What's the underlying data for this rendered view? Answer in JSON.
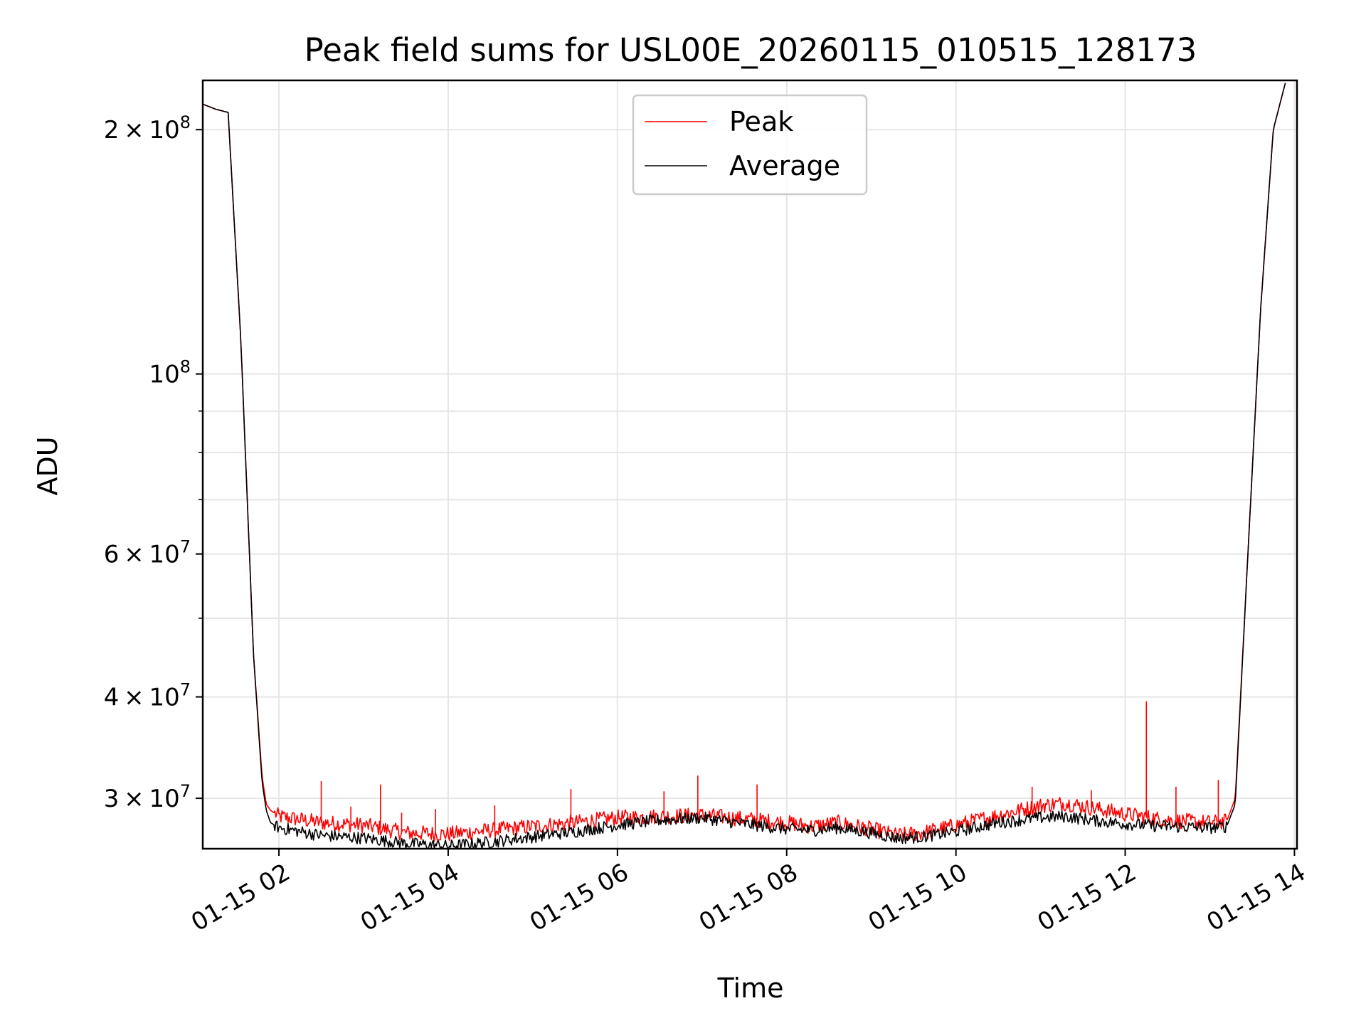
{
  "chart_data": {
    "type": "line",
    "title": "Peak field sums for USL00E_20260115_010515_128173",
    "xlabel": "Time",
    "ylabel": "ADU",
    "yscale": "log",
    "x_units": "hours since 2026-01-15 00:00",
    "xlim": [
      1.1,
      14.03
    ],
    "ylim": [
      26000000,
      230000000
    ],
    "grid": true,
    "legend_position": "upper-center",
    "x_ticks": [
      {
        "value": 2,
        "label": "01-15 02"
      },
      {
        "value": 4,
        "label": "01-15 04"
      },
      {
        "value": 6,
        "label": "01-15 06"
      },
      {
        "value": 8,
        "label": "01-15 08"
      },
      {
        "value": 10,
        "label": "01-15 10"
      },
      {
        "value": 12,
        "label": "01-15 12"
      },
      {
        "value": 14,
        "label": "01-15 14"
      }
    ],
    "y_ticks": [
      {
        "value": 200000000,
        "mant": "2",
        "exp": "8"
      },
      {
        "value": 100000000,
        "mant": "",
        "exp": "8"
      },
      {
        "value": 60000000,
        "mant": "6",
        "exp": "7"
      },
      {
        "value": 40000000,
        "mant": "4",
        "exp": "7"
      },
      {
        "value": 30000000,
        "mant": "3",
        "exp": "7"
      }
    ],
    "y_minor_ticks": [
      90000000,
      80000000,
      70000000,
      50000000
    ],
    "series": [
      {
        "name": "Peak",
        "color": "#ff0000",
        "x": [
          1.1,
          1.25,
          1.4,
          1.55,
          1.7,
          1.8,
          1.85,
          1.9,
          2.0,
          2.5,
          3.0,
          3.5,
          4.0,
          4.5,
          5.0,
          5.5,
          6.0,
          6.5,
          7.0,
          7.5,
          8.0,
          8.3,
          8.6,
          9.0,
          9.3,
          9.6,
          10.0,
          10.5,
          11.0,
          11.3,
          11.6,
          12.0,
          12.5,
          13.0,
          13.2,
          13.3,
          13.45,
          13.6,
          13.75,
          13.9
        ],
        "y": [
          215000000,
          212000000,
          210000000,
          110000000,
          45000000,
          32000000,
          29500000,
          29000000,
          28500000,
          28000000,
          27800000,
          27200000,
          27100000,
          27400000,
          27700000,
          28000000,
          28400000,
          28500000,
          28600000,
          28300000,
          28000000,
          27700000,
          28000000,
          27500000,
          27000000,
          27200000,
          27800000,
          28600000,
          29400000,
          29600000,
          29200000,
          28700000,
          28200000,
          28000000,
          28100000,
          30000000,
          60000000,
          120000000,
          200000000,
          230000000
        ],
        "spikes": [
          {
            "x": 2.5,
            "y": 31500000
          },
          {
            "x": 2.85,
            "y": 29300000
          },
          {
            "x": 3.2,
            "y": 31200000
          },
          {
            "x": 3.45,
            "y": 28800000
          },
          {
            "x": 3.85,
            "y": 29100000
          },
          {
            "x": 4.55,
            "y": 29400000
          },
          {
            "x": 5.45,
            "y": 30800000
          },
          {
            "x": 6.55,
            "y": 30600000
          },
          {
            "x": 6.95,
            "y": 32000000
          },
          {
            "x": 7.65,
            "y": 31200000
          },
          {
            "x": 10.9,
            "y": 31000000
          },
          {
            "x": 11.6,
            "y": 30700000
          },
          {
            "x": 12.25,
            "y": 39500000
          },
          {
            "x": 12.6,
            "y": 31000000
          },
          {
            "x": 13.1,
            "y": 31600000
          }
        ]
      },
      {
        "name": "Average",
        "color": "#000000",
        "x": [
          1.1,
          1.25,
          1.4,
          1.55,
          1.7,
          1.8,
          1.85,
          1.9,
          2.0,
          2.5,
          3.0,
          3.5,
          4.0,
          4.5,
          5.0,
          5.5,
          6.0,
          6.5,
          7.0,
          7.5,
          8.0,
          8.3,
          8.6,
          9.0,
          9.3,
          9.6,
          10.0,
          10.5,
          11.0,
          11.3,
          11.6,
          12.0,
          12.5,
          13.0,
          13.2,
          13.3,
          13.45,
          13.6,
          13.75,
          13.9
        ],
        "y": [
          215000000,
          212000000,
          210000000,
          110000000,
          45000000,
          31500000,
          29000000,
          28000000,
          27600000,
          27000000,
          26800000,
          26400000,
          26200000,
          26500000,
          26900000,
          27300000,
          27800000,
          28200000,
          28400000,
          27900000,
          27500000,
          27400000,
          27600000,
          27200000,
          26800000,
          26900000,
          27300000,
          28000000,
          28400000,
          28500000,
          28200000,
          27900000,
          27700000,
          27600000,
          27700000,
          29500000,
          60000000,
          120000000,
          200000000,
          230000000
        ]
      }
    ]
  }
}
